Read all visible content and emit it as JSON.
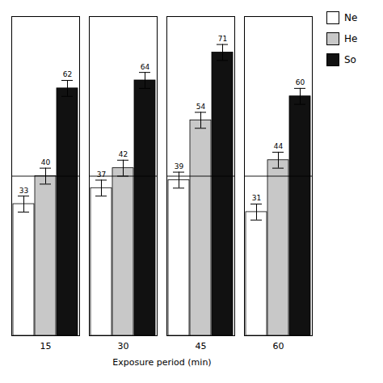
{
  "chart_data": {
    "type": "bar",
    "xlabel": "Exposure period (min)",
    "categories": [
      15,
      30,
      45,
      60
    ],
    "series": [
      {
        "name": "Ne",
        "color": "#ffffff",
        "values": [
          33,
          37,
          39,
          31
        ],
        "errors": [
          2,
          2,
          2,
          2
        ]
      },
      {
        "name": "He",
        "color": "#c8c8c8",
        "values": [
          40,
          42,
          54,
          44
        ],
        "errors": [
          2,
          2,
          2,
          2
        ]
      },
      {
        "name": "So",
        "color": "#111111",
        "values": [
          62,
          64,
          71,
          60
        ],
        "errors": [
          2,
          2,
          2,
          2
        ]
      }
    ],
    "ylim": [
      0,
      80
    ],
    "yticks": [],
    "tick_labels": "x",
    "data_labels": true,
    "legend": "upper right",
    "reference_line": 40
  }
}
